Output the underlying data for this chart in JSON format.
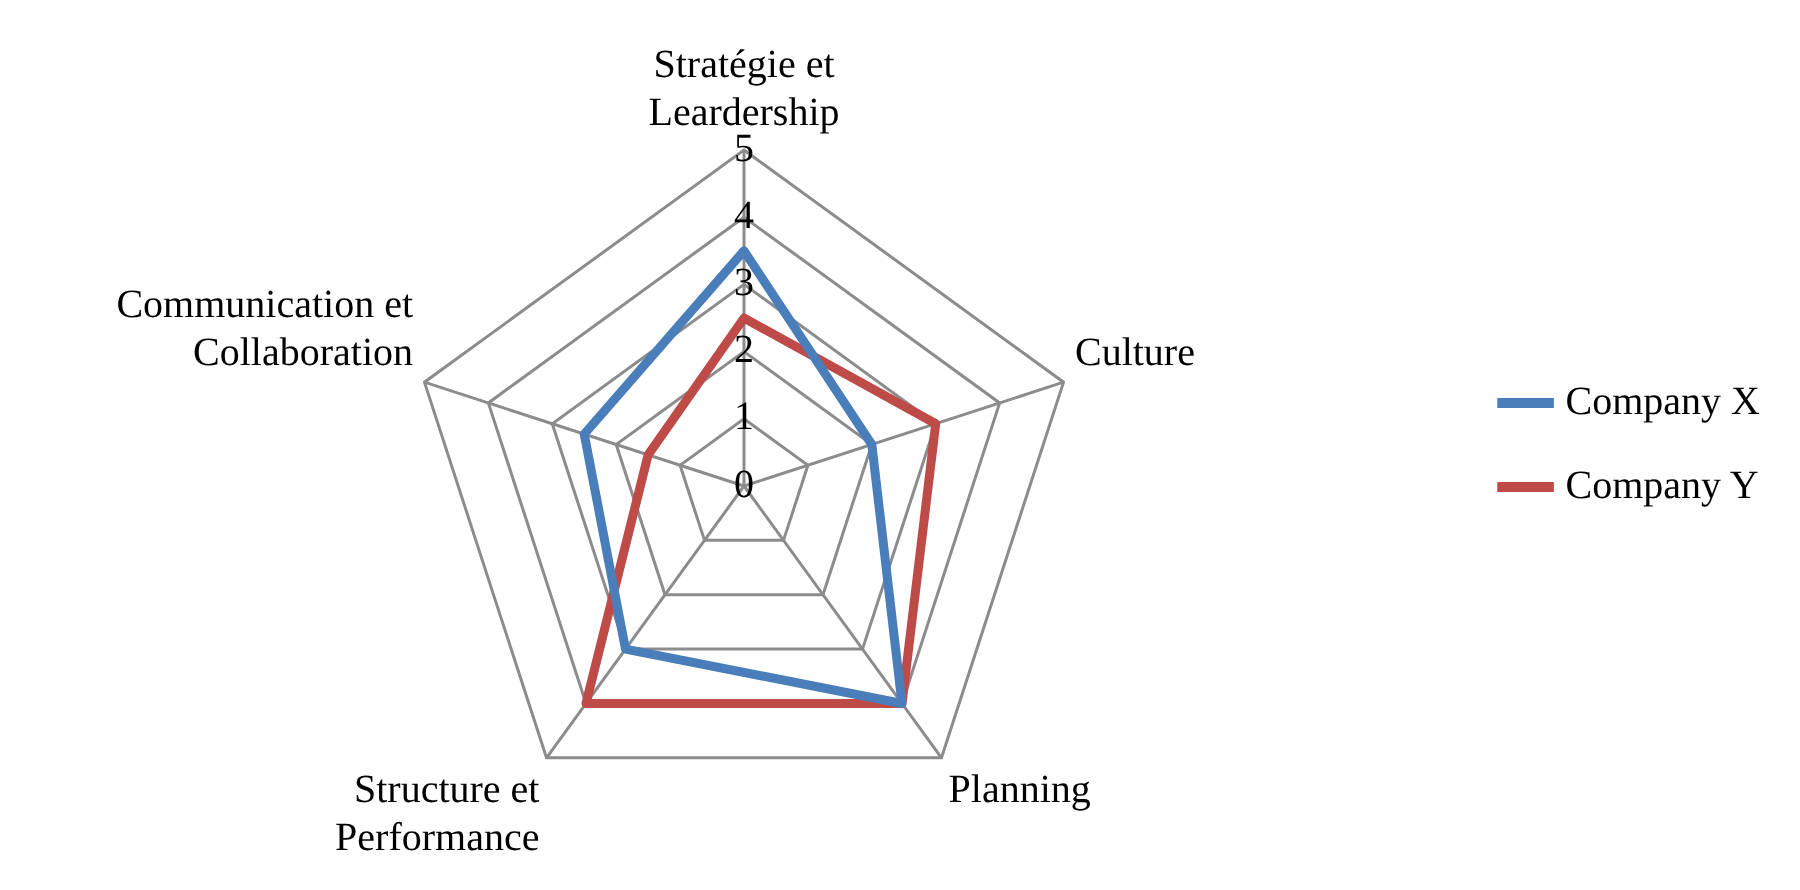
{
  "chart_data": {
    "type": "radar",
    "categories": [
      "Stratégie et Leardership",
      "Culture",
      "Planning",
      "Structure et Performance",
      "Communication et Collaboration"
    ],
    "series": [
      {
        "name": "Company X",
        "color": "#4a7ebb",
        "values": [
          3.5,
          2,
          4,
          3,
          2.5
        ]
      },
      {
        "name": "Company Y",
        "color": "#be4b48",
        "values": [
          2.5,
          3,
          4,
          4,
          1.5
        ]
      }
    ],
    "ylim": [
      0,
      5
    ],
    "yticks": [
      0,
      1,
      2,
      3,
      4,
      5
    ],
    "grid": true,
    "legend": "right",
    "marker": "none",
    "line_style": "solid"
  }
}
